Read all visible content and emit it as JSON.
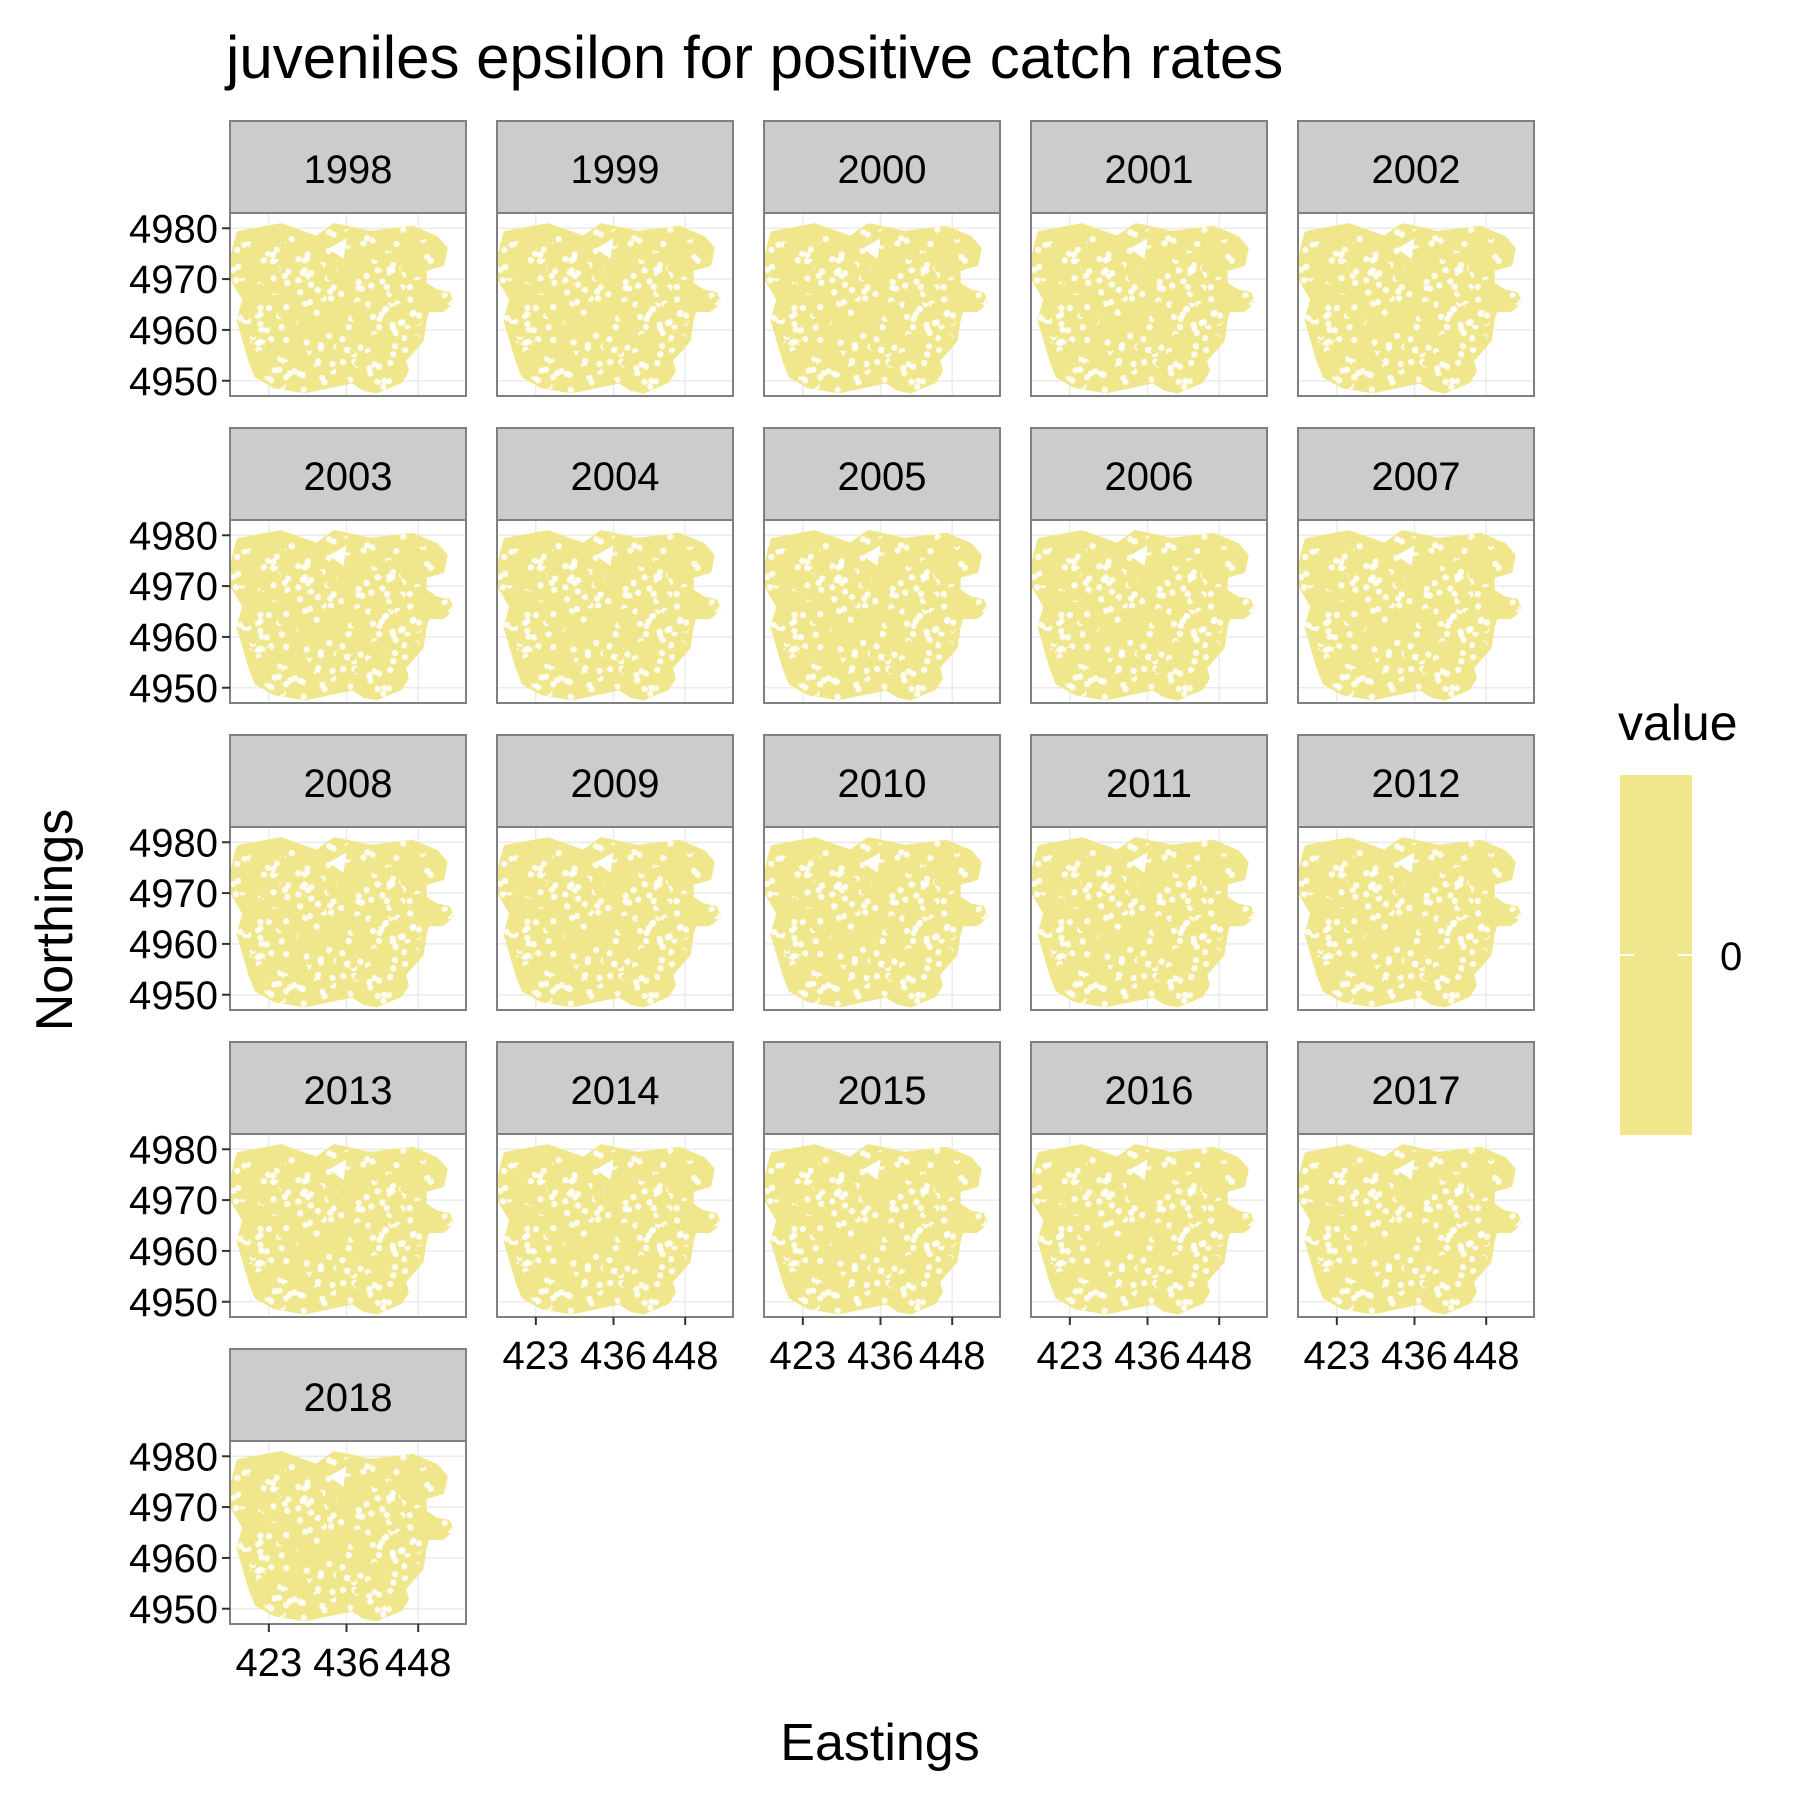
{
  "chart_data": {
    "type": "scatter",
    "title": "juveniles epsilon for positive catch rates",
    "xlabel": "Eastings",
    "ylabel": "Northings",
    "facets": [
      "1998",
      "1999",
      "2000",
      "2001",
      "2002",
      "2003",
      "2004",
      "2005",
      "2006",
      "2007",
      "2008",
      "2009",
      "2010",
      "2011",
      "2012",
      "2013",
      "2014",
      "2015",
      "2016",
      "2017",
      "2018"
    ],
    "facet_columns": 5,
    "x_ticks": [
      423,
      436,
      448
    ],
    "y_ticks": [
      4950,
      4960,
      4970,
      4980
    ],
    "xlim": [
      416.5,
      456
    ],
    "ylim": [
      4947,
      4983
    ],
    "region_outline": [
      [
        418,
        4979
      ],
      [
        425,
        4980.5
      ],
      [
        431,
        4978
      ],
      [
        434,
        4980.5
      ],
      [
        440,
        4979
      ],
      [
        447,
        4980
      ],
      [
        449,
        4979
      ],
      [
        451,
        4978
      ],
      [
        452.5,
        4976
      ],
      [
        452,
        4973
      ],
      [
        449,
        4972
      ],
      [
        449,
        4969
      ],
      [
        451,
        4967.5
      ],
      [
        453,
        4967
      ],
      [
        453.5,
        4965.5
      ],
      [
        452,
        4964
      ],
      [
        449.5,
        4964
      ],
      [
        449,
        4962
      ],
      [
        448.5,
        4958
      ],
      [
        447,
        4956
      ],
      [
        445.5,
        4954
      ],
      [
        446,
        4952
      ],
      [
        445,
        4950
      ],
      [
        443,
        4949
      ],
      [
        441,
        4948
      ],
      [
        439,
        4948.5
      ],
      [
        437,
        4950
      ],
      [
        433,
        4949
      ],
      [
        429,
        4948
      ],
      [
        424,
        4949
      ],
      [
        421,
        4951
      ],
      [
        420,
        4954
      ],
      [
        419,
        4958
      ],
      [
        418,
        4962
      ],
      [
        419,
        4966
      ],
      [
        417,
        4970
      ],
      [
        416.8,
        4973
      ],
      [
        417.5,
        4977
      ]
    ],
    "hole_outline": [
      [
        433,
        4976
      ],
      [
        436,
        4978
      ],
      [
        435.5,
        4974
      ]
    ],
    "legend": {
      "title": "value",
      "labels": [
        "0"
      ],
      "color": "#F0E68C",
      "position": "right"
    },
    "fill_color": "#F0E68C",
    "strip_color": "#CCCCCC",
    "panel_border_color": "#808080",
    "grid": true
  }
}
